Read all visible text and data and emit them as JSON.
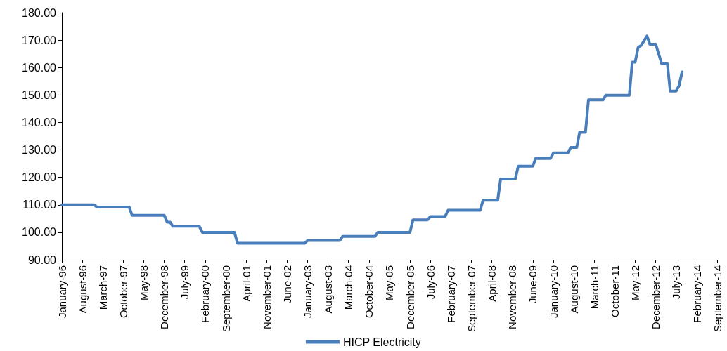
{
  "chart_data": {
    "type": "line",
    "legend": "bottom",
    "grid": false,
    "marker": "none",
    "line_style": "solid",
    "xlim": [
      "1996-01",
      "2014-09"
    ],
    "xticks": [
      {
        "value": "1996-01",
        "label": "January-96"
      },
      {
        "value": "1996-08",
        "label": "August-96"
      },
      {
        "value": "1997-03",
        "label": "March-97"
      },
      {
        "value": "1997-10",
        "label": "October-97"
      },
      {
        "value": "1998-05",
        "label": "May-98"
      },
      {
        "value": "1998-12",
        "label": "December-98"
      },
      {
        "value": "1999-07",
        "label": "July-99"
      },
      {
        "value": "2000-02",
        "label": "February-00"
      },
      {
        "value": "2000-09",
        "label": "September-00"
      },
      {
        "value": "2001-04",
        "label": "April-01"
      },
      {
        "value": "2001-11",
        "label": "November-01"
      },
      {
        "value": "2002-06",
        "label": "June-02"
      },
      {
        "value": "2003-01",
        "label": "January-03"
      },
      {
        "value": "2003-08",
        "label": "August-03"
      },
      {
        "value": "2004-03",
        "label": "March-04"
      },
      {
        "value": "2004-10",
        "label": "October-04"
      },
      {
        "value": "2005-05",
        "label": "May-05"
      },
      {
        "value": "2005-12",
        "label": "December-05"
      },
      {
        "value": "2006-07",
        "label": "July-06"
      },
      {
        "value": "2007-02",
        "label": "February-07"
      },
      {
        "value": "2007-09",
        "label": "September-07"
      },
      {
        "value": "2008-04",
        "label": "April-08"
      },
      {
        "value": "2008-11",
        "label": "November-08"
      },
      {
        "value": "2009-06",
        "label": "June-09"
      },
      {
        "value": "2010-01",
        "label": "January-10"
      },
      {
        "value": "2010-08",
        "label": "August-10"
      },
      {
        "value": "2011-03",
        "label": "March-11"
      },
      {
        "value": "2011-10",
        "label": "October-11"
      },
      {
        "value": "2012-05",
        "label": "May-12"
      },
      {
        "value": "2012-12",
        "label": "December-12"
      },
      {
        "value": "2013-07",
        "label": "July-13"
      },
      {
        "value": "2014-02",
        "label": "February-14"
      },
      {
        "value": "2014-09",
        "label": "September-14"
      }
    ],
    "ylim": [
      90,
      180
    ],
    "yticks": [
      {
        "value": 90,
        "label": "90.00"
      },
      {
        "value": 100,
        "label": "100.00"
      },
      {
        "value": 110,
        "label": "110.00"
      },
      {
        "value": 120,
        "label": "120.00"
      },
      {
        "value": 130,
        "label": "130.00"
      },
      {
        "value": 140,
        "label": "140.00"
      },
      {
        "value": 150,
        "label": "150.00"
      },
      {
        "value": 160,
        "label": "160.00"
      },
      {
        "value": 170,
        "label": "170.00"
      },
      {
        "value": 180,
        "label": "180.00"
      }
    ],
    "series": [
      {
        "name": "HICP Electricity",
        "color": "#4a7ebb",
        "x": [
          "1996-01",
          "1996-12",
          "1997-01",
          "1997-12",
          "1998-01",
          "1998-12",
          "1999-01",
          "1999-02",
          "1999-03",
          "1999-12",
          "2000-01",
          "2000-12",
          "2001-01",
          "2002-12",
          "2003-01",
          "2003-12",
          "2004-01",
          "2004-12",
          "2005-01",
          "2005-12",
          "2006-01",
          "2006-06",
          "2006-07",
          "2006-12",
          "2007-01",
          "2007-12",
          "2008-01",
          "2008-06",
          "2008-07",
          "2008-12",
          "2009-01",
          "2009-06",
          "2009-07",
          "2009-12",
          "2010-01",
          "2010-06",
          "2010-07",
          "2010-09",
          "2010-10",
          "2010-12",
          "2011-01",
          "2011-06",
          "2011-07",
          "2012-03",
          "2012-04",
          "2012-05",
          "2012-06",
          "2012-07",
          "2012-09",
          "2012-10",
          "2012-12",
          "2013-02",
          "2013-04",
          "2013-05",
          "2013-07",
          "2013-08",
          "2013-09"
        ],
        "values": [
          110.0,
          110.0,
          109.2,
          109.2,
          106.2,
          106.2,
          103.7,
          103.7,
          102.2,
          102.2,
          100.0,
          100.0,
          96.0,
          96.0,
          97.0,
          97.0,
          98.5,
          98.5,
          100.0,
          100.0,
          104.5,
          104.5,
          105.7,
          105.7,
          108.0,
          108.0,
          111.7,
          111.7,
          119.4,
          119.4,
          124.1,
          124.1,
          126.9,
          126.9,
          128.9,
          128.9,
          130.9,
          130.9,
          136.4,
          136.4,
          148.2,
          148.2,
          149.9,
          149.9,
          162.0,
          162.0,
          167.3,
          168.0,
          171.5,
          168.5,
          168.5,
          161.4,
          161.4,
          151.4,
          151.4,
          153.4,
          158.4
        ]
      }
    ]
  }
}
